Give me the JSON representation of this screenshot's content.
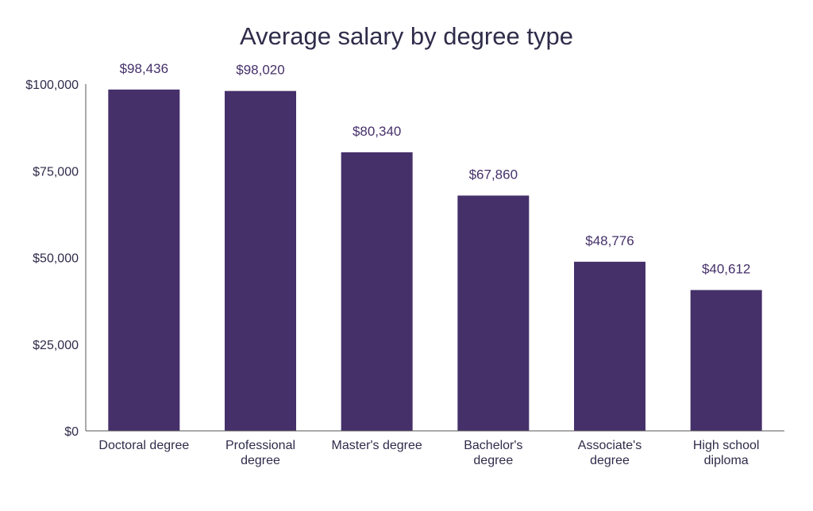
{
  "chart_data": {
    "type": "bar",
    "title": "Average salary by degree type",
    "xlabel": "",
    "ylabel": "",
    "categories": [
      [
        "Doctoral degree"
      ],
      [
        "Professional",
        "degree"
      ],
      [
        "Master's degree"
      ],
      [
        "Bachelor's",
        "degree"
      ],
      [
        "Associate's",
        "degree"
      ],
      [
        "High school",
        "diploma"
      ]
    ],
    "values": [
      98436,
      98020,
      80340,
      67860,
      48776,
      40612
    ],
    "data_labels": [
      "$98,436",
      "$98,020",
      "$80,340",
      "$67,860",
      "$48,776",
      "$40,612"
    ],
    "ylim": [
      0,
      100000
    ],
    "y_ticks": [
      0,
      25000,
      50000,
      75000,
      100000
    ],
    "y_tick_labels": [
      "$0",
      "$25,000",
      "$50,000",
      "$75,000",
      "$100,000"
    ],
    "grid": false,
    "legend": "none",
    "bar_color": "#45306a",
    "text_color": "#2f2c4a",
    "axis_color": "#555555"
  }
}
